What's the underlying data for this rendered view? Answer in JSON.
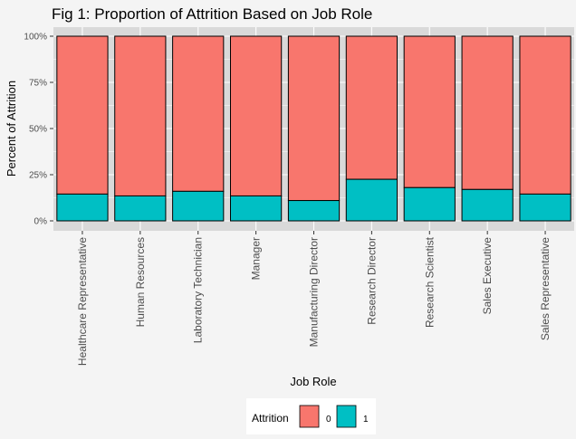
{
  "chart_data": {
    "type": "bar",
    "stacked": true,
    "title": "Fig 1: Proportion of Attrition Based on Job Role",
    "xlabel": "Job Role",
    "ylabel": "Percent of Attrition",
    "ylim": [
      0,
      1
    ],
    "yticks": [
      "0%",
      "25%",
      "50%",
      "75%",
      "100%"
    ],
    "categories": [
      "Healthcare Representative",
      "Human Resources",
      "Laboratory Technician",
      "Manager",
      "Manufacturing Director",
      "Research Director",
      "Research Scientist",
      "Sales Executive",
      "Sales Representative"
    ],
    "legend": {
      "title": "Attrition",
      "position": "bottom"
    },
    "series": [
      {
        "name": "0",
        "color": "#F8766D",
        "values": [
          0.855,
          0.865,
          0.84,
          0.865,
          0.89,
          0.775,
          0.82,
          0.83,
          0.855
        ]
      },
      {
        "name": "1",
        "color": "#00BFC4",
        "values": [
          0.145,
          0.135,
          0.16,
          0.135,
          0.11,
          0.225,
          0.18,
          0.17,
          0.145
        ]
      }
    ],
    "grid": true,
    "panel_background": "#d9d9d9"
  }
}
